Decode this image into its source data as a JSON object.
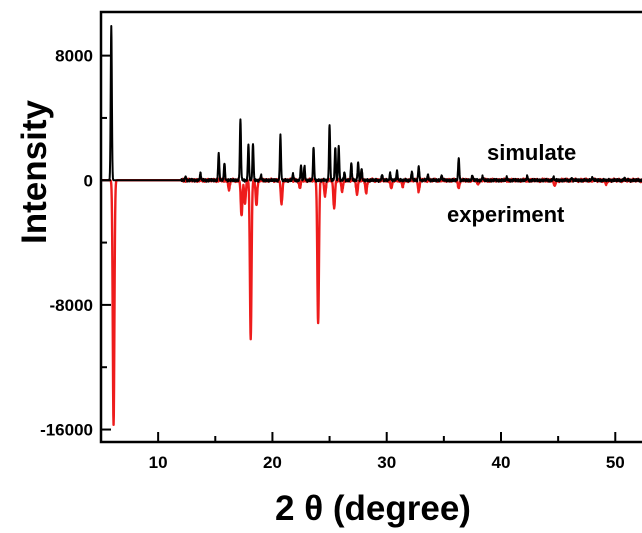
{
  "chart_data": {
    "type": "line",
    "title": "",
    "xlabel": "2 θ (degree)",
    "ylabel": "Intensity",
    "xlim": [
      5,
      54
    ],
    "ylim": [
      -16800,
      10800
    ],
    "x_ticks": [
      10,
      20,
      30,
      40,
      50
    ],
    "y_ticks": [
      8000,
      0,
      -8000,
      -16000
    ],
    "grid": false,
    "legend": "none",
    "annotations": [
      "simulate",
      "experiment"
    ],
    "series": [
      {
        "name": "simulate",
        "color": "#000000",
        "peaks": [
          [
            5.9,
            9900
          ],
          [
            12.4,
            250
          ],
          [
            13.7,
            450
          ],
          [
            15.3,
            1750
          ],
          [
            15.8,
            1100
          ],
          [
            17.2,
            3900
          ],
          [
            17.9,
            2300
          ],
          [
            18.3,
            2350
          ],
          [
            19.0,
            300
          ],
          [
            20.7,
            2850
          ],
          [
            21.8,
            400
          ],
          [
            22.5,
            950
          ],
          [
            22.8,
            900
          ],
          [
            23.6,
            2100
          ],
          [
            25.0,
            3550
          ],
          [
            25.5,
            2150
          ],
          [
            25.8,
            2200
          ],
          [
            26.3,
            500
          ],
          [
            26.9,
            1100
          ],
          [
            27.5,
            1150
          ],
          [
            27.8,
            750
          ],
          [
            29.6,
            350
          ],
          [
            30.3,
            450
          ],
          [
            30.9,
            600
          ],
          [
            32.2,
            550
          ],
          [
            32.8,
            900
          ],
          [
            33.6,
            350
          ],
          [
            34.8,
            300
          ],
          [
            36.3,
            1450
          ],
          [
            37.5,
            300
          ],
          [
            38.4,
            250
          ],
          [
            40.5,
            200
          ],
          [
            42.3,
            250
          ],
          [
            44.6,
            200
          ],
          [
            46.2,
            150
          ],
          [
            48.0,
            180
          ],
          [
            50.8,
            150
          ],
          [
            52.6,
            120
          ]
        ]
      },
      {
        "name": "experiment",
        "color": "#ee1c1c",
        "peaks": [
          [
            6.1,
            -15700
          ],
          [
            16.2,
            -600
          ],
          [
            17.3,
            -2300
          ],
          [
            17.6,
            -1500
          ],
          [
            18.1,
            -10200
          ],
          [
            18.6,
            -1600
          ],
          [
            20.8,
            -1500
          ],
          [
            22.4,
            -500
          ],
          [
            24.0,
            -9200
          ],
          [
            24.6,
            -1000
          ],
          [
            25.4,
            -1800
          ],
          [
            26.1,
            -700
          ],
          [
            27.4,
            -900
          ],
          [
            28.2,
            -800
          ],
          [
            30.4,
            -500
          ],
          [
            31.4,
            -400
          ],
          [
            32.8,
            -700
          ],
          [
            36.3,
            -500
          ],
          [
            38.0,
            -250
          ],
          [
            44.7,
            -350
          ],
          [
            49.2,
            -250
          ],
          [
            53.8,
            -200
          ]
        ]
      }
    ]
  }
}
